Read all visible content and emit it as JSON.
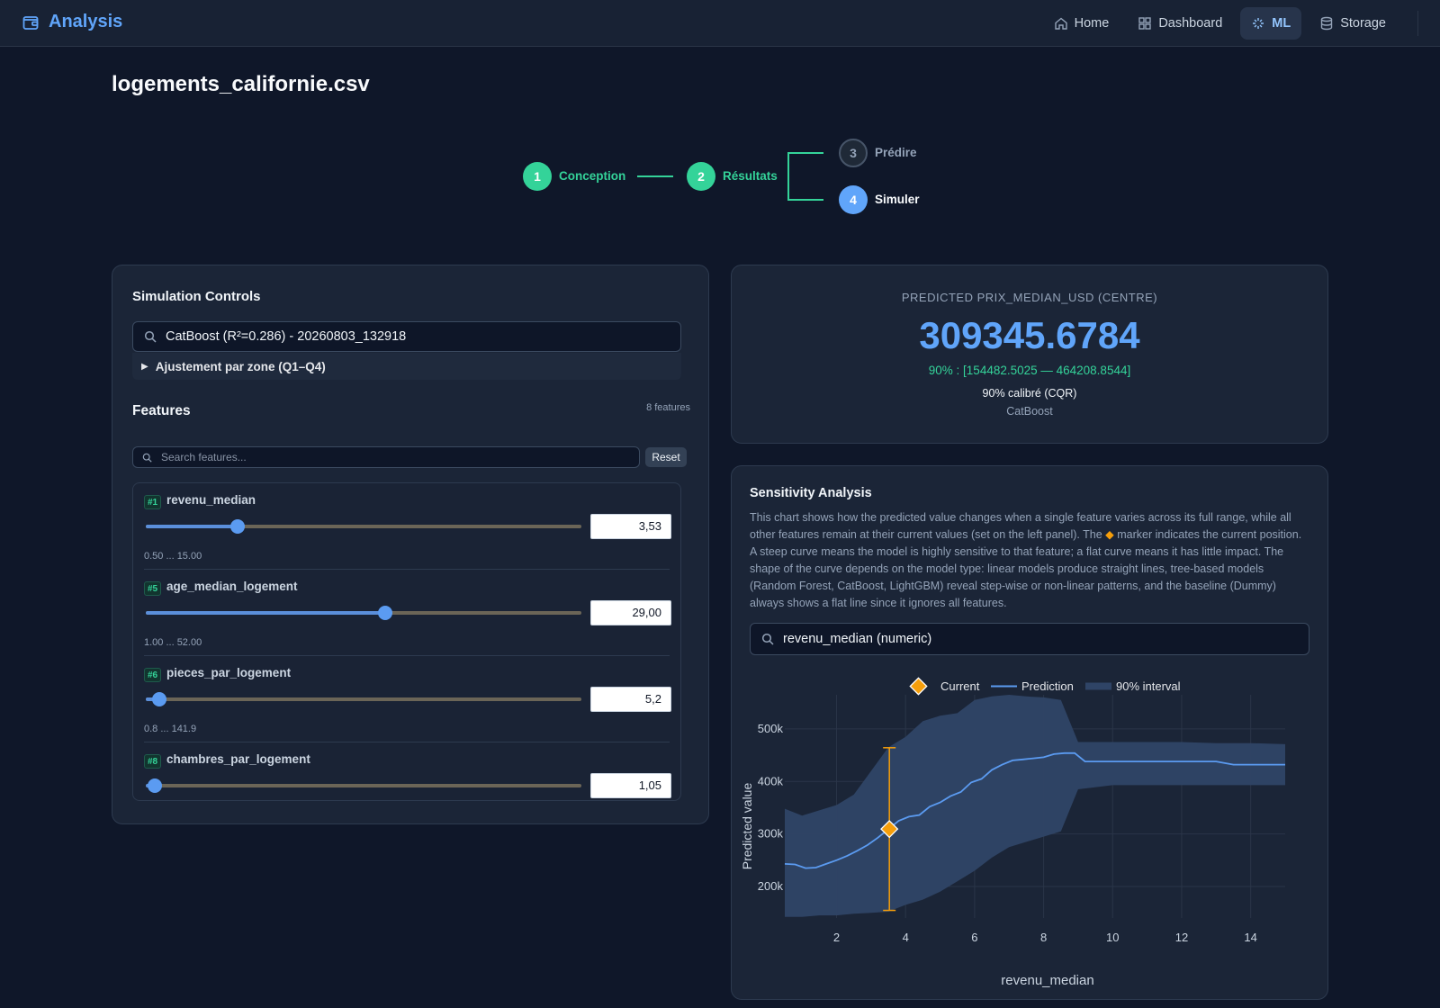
{
  "nav": {
    "brand": "Analysis",
    "links": [
      {
        "label": "Home",
        "icon": "home-icon"
      },
      {
        "label": "Dashboard",
        "icon": "grid-icon"
      },
      {
        "label": "ML",
        "icon": "sparkle-icon",
        "active": true
      },
      {
        "label": "Storage",
        "icon": "database-icon"
      }
    ]
  },
  "page": {
    "title": "logements_californie.csv"
  },
  "stepper": {
    "steps": [
      {
        "num": "1",
        "label": "Conception",
        "state": "done"
      },
      {
        "num": "2",
        "label": "Résultats",
        "state": "done"
      },
      {
        "num": "3",
        "label": "Prédire",
        "state": "inactive"
      },
      {
        "num": "4",
        "label": "Simuler",
        "state": "active"
      }
    ]
  },
  "controls": {
    "title": "Simulation Controls",
    "model_selected": "CatBoost (R²=0.286) - 20260803_132918",
    "zone_label": "Ajustement par zone (Q1–Q4)",
    "features_title": "Features",
    "features_count": "8 features",
    "search_placeholder": "Search features...",
    "reset_label": "Reset",
    "features": [
      {
        "rank": "#1",
        "name": "revenu_median",
        "value": "3,53",
        "range": "0.50 ... 15.00",
        "fraction": 0.21
      },
      {
        "rank": "#5",
        "name": "age_median_logement",
        "value": "29,00",
        "range": "1.00 ... 52.00",
        "fraction": 0.55
      },
      {
        "rank": "#6",
        "name": "pieces_par_logement",
        "value": "5,2",
        "range": "0.8 ... 141.9",
        "fraction": 0.03
      },
      {
        "rank": "#8",
        "name": "chambres_par_logement",
        "value": "1,05",
        "range": "",
        "fraction": 0.02
      }
    ]
  },
  "prediction": {
    "label": "PREDICTED PRIX_MEDIAN_USD (CENTRE)",
    "value": "309345.6784",
    "interval": "90% : [154482.5025 — 464208.8544]",
    "calibration": "90% calibré (CQR)",
    "model": "CatBoost"
  },
  "sensitivity": {
    "title": "Sensitivity Analysis",
    "description_before": "This chart shows how the predicted value changes when a single feature varies across its full range, while all other features remain at their current values (set on the left panel). The ",
    "marker_glyph": "◆",
    "description_after": " marker indicates the current position. A steep curve means the model is highly sensitive to that feature; a flat curve means it has little impact. The shape of the curve depends on the model type: linear models produce straight lines, tree-based models (Random Forest, CatBoost, LightGBM) reveal step-wise or non-linear patterns, and the baseline (Dummy) always shows a flat line since it ignores all features.",
    "feature_selected": "revenu_median (numeric)"
  },
  "chart_data": {
    "type": "line",
    "xlabel": "revenu_median",
    "ylabel": "Predicted value",
    "xlim": [
      0.5,
      15
    ],
    "ylim": [
      140000,
      565000
    ],
    "x_ticks": [
      2,
      4,
      6,
      8,
      10,
      12,
      14
    ],
    "x_tick_labels": [
      "2",
      "4",
      "6",
      "8",
      "10",
      "12",
      "14"
    ],
    "y_ticks": [
      200000,
      300000,
      400000,
      500000
    ],
    "y_tick_labels": [
      "200k",
      "300k",
      "400k",
      "500k"
    ],
    "grid": true,
    "legend": [
      "Current",
      "Prediction",
      "90% interval"
    ],
    "legend_position": "top",
    "colors": {
      "prediction": "#5b9bf1",
      "interval": "#2f4466",
      "current": "#f59e0b"
    },
    "prediction": {
      "x": [
        0.5,
        0.8,
        1.1,
        1.4,
        1.7,
        2.0,
        2.3,
        2.6,
        2.9,
        3.2,
        3.5,
        3.8,
        4.1,
        4.4,
        4.7,
        5.0,
        5.3,
        5.6,
        5.9,
        6.2,
        6.5,
        6.8,
        7.1,
        7.4,
        7.7,
        8.0,
        8.3,
        8.6,
        8.9,
        9.2,
        10,
        11,
        12,
        13,
        13.5,
        14,
        15
      ],
      "y": [
        243000,
        242000,
        235000,
        236000,
        243000,
        250000,
        258000,
        268000,
        279000,
        293000,
        309000,
        325000,
        333000,
        336000,
        352000,
        360000,
        372000,
        380000,
        398000,
        405000,
        422000,
        432000,
        440000,
        442000,
        444000,
        446000,
        452000,
        454000,
        454000,
        438000,
        438000,
        438000,
        438000,
        438000,
        432000,
        432000,
        432000
      ]
    },
    "interval": {
      "x": [
        0.5,
        1.0,
        1.5,
        2.0,
        2.5,
        3.0,
        3.5,
        4.0,
        4.5,
        5.0,
        5.5,
        6.0,
        6.5,
        7.0,
        7.5,
        8.0,
        8.5,
        9.0,
        10,
        11,
        12,
        13,
        14,
        15
      ],
      "upper": [
        348000,
        335000,
        345000,
        355000,
        375000,
        420000,
        465000,
        485000,
        515000,
        525000,
        530000,
        555000,
        562000,
        565000,
        562000,
        560000,
        555000,
        475000,
        475000,
        475000,
        475000,
        473000,
        473000,
        471000
      ],
      "lower": [
        142000,
        142000,
        145000,
        145000,
        148000,
        150000,
        152000,
        165000,
        175000,
        190000,
        210000,
        230000,
        255000,
        275000,
        285000,
        295000,
        305000,
        385000,
        393000,
        393000,
        393000,
        393000,
        393000,
        393000
      ]
    },
    "current": {
      "x": 3.53,
      "y": 309345.6784,
      "lower": 154482.5025,
      "upper": 464208.8544
    }
  }
}
